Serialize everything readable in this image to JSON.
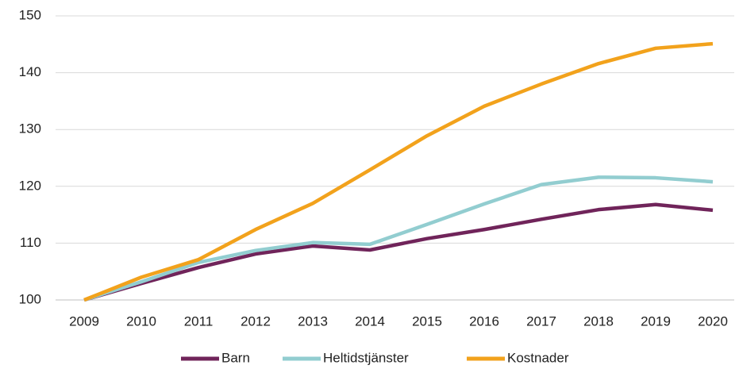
{
  "chart_data": {
    "type": "line",
    "categories": [
      "2009",
      "2010",
      "2011",
      "2012",
      "2013",
      "2014",
      "2015",
      "2016",
      "2017",
      "2018",
      "2019",
      "2020"
    ],
    "series": [
      {
        "name": "Barn",
        "color": "#70245a",
        "values": [
          100,
          102.9,
          105.7,
          108.1,
          109.5,
          108.8,
          110.8,
          112.4,
          114.2,
          115.9,
          116.8,
          115.8
        ]
      },
      {
        "name": "Heltidstjänster",
        "color": "#92cdd0",
        "values": [
          100,
          103.2,
          106.6,
          108.7,
          110.1,
          109.8,
          113.3,
          116.9,
          120.3,
          121.6,
          121.5,
          120.8
        ]
      },
      {
        "name": "Kostnader",
        "color": "#f2a21c",
        "values": [
          100,
          104.0,
          107.1,
          112.4,
          117.0,
          122.9,
          128.9,
          134.1,
          138.0,
          141.6,
          144.3,
          145.1
        ]
      }
    ],
    "ylim": [
      100,
      150
    ],
    "yticks": [
      100,
      110,
      120,
      130,
      140,
      150
    ],
    "grid": true,
    "legend": "bottom"
  }
}
